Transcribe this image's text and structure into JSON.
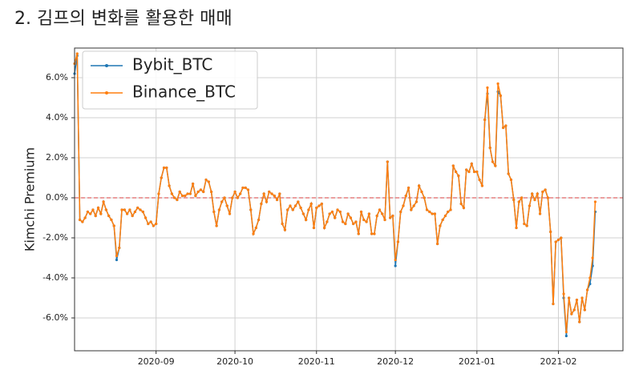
{
  "heading": "2. 김프의 변화를 활용한 매매",
  "chart_data": {
    "type": "line",
    "ylabel": "Kimchi Premium",
    "categories": [
      null,
      null,
      null,
      null,
      null,
      null,
      null,
      null,
      null,
      null,
      null,
      null,
      null,
      null,
      null,
      null,
      null,
      null,
      null,
      null,
      null,
      null,
      null,
      null,
      null,
      null,
      null,
      null,
      null,
      null,
      null,
      "2020-09",
      null,
      null,
      null,
      null,
      null,
      null,
      null,
      null,
      null,
      null,
      null,
      null,
      null,
      null,
      null,
      null,
      null,
      null,
      null,
      null,
      null,
      null,
      null,
      null,
      null,
      null,
      null,
      null,
      null,
      "2020-10",
      null,
      null,
      null,
      null,
      null,
      null,
      null,
      null,
      null,
      null,
      null,
      null,
      null,
      null,
      null,
      null,
      null,
      null,
      null,
      null,
      null,
      null,
      null,
      null,
      null,
      null,
      null,
      null,
      null,
      null,
      "2020-11",
      null,
      null,
      null,
      null,
      null,
      null,
      null,
      null,
      null,
      null,
      null,
      null,
      null,
      null,
      null,
      null,
      null,
      null,
      null,
      null,
      null,
      null,
      null,
      null,
      null,
      null,
      null,
      null,
      null,
      "2020-12",
      null,
      null,
      null,
      null,
      null,
      null,
      null,
      null,
      null,
      null,
      null,
      null,
      null,
      null,
      null,
      null,
      null,
      null,
      null,
      null,
      null,
      null,
      null,
      null,
      null,
      null,
      null,
      null,
      null,
      null,
      "2021-01",
      null,
      null,
      null,
      null,
      null,
      null,
      null,
      null,
      null,
      null,
      null,
      null,
      null,
      null,
      null,
      null,
      null,
      null,
      null,
      null,
      null,
      null,
      null,
      null,
      null,
      null,
      null,
      null,
      null,
      null,
      "2021-02",
      null,
      null,
      null,
      null,
      null,
      null,
      null,
      null,
      null,
      null,
      null,
      null,
      null,
      null
    ],
    "series": [
      {
        "name": "Bybit_BTC",
        "color": "#1f77b4",
        "values": [
          6.2,
          7.1,
          -1.1,
          -1.2,
          -1.0,
          -0.7,
          -0.8,
          -0.6,
          -0.9,
          -0.5,
          -0.8,
          -0.2,
          -0.6,
          -0.9,
          -1.1,
          -1.4,
          -3.1,
          -2.5,
          -0.6,
          -0.6,
          -0.8,
          -0.6,
          -0.9,
          -0.7,
          -0.5,
          -0.6,
          -0.7,
          -1.0,
          -1.3,
          -1.2,
          -1.4,
          -1.3,
          0.2,
          1.0,
          1.5,
          1.5,
          0.6,
          0.2,
          0.0,
          -0.1,
          0.3,
          0.1,
          0.1,
          0.2,
          0.2,
          0.7,
          0.1,
          0.3,
          0.4,
          0.3,
          0.9,
          0.8,
          0.3,
          -0.7,
          -1.4,
          -0.6,
          -0.2,
          0.0,
          -0.4,
          -0.8,
          0.0,
          0.3,
          0.0,
          0.2,
          0.5,
          0.5,
          0.4,
          -0.6,
          -1.8,
          -1.5,
          -1.1,
          -0.3,
          0.2,
          -0.2,
          0.3,
          0.2,
          0.1,
          -0.1,
          0.2,
          -1.3,
          -1.6,
          -0.6,
          -0.4,
          -0.6,
          -0.4,
          -0.2,
          -0.5,
          -0.8,
          -1.1,
          -0.6,
          -0.3,
          -1.5,
          -0.5,
          -0.4,
          -0.3,
          -1.5,
          -1.2,
          -0.8,
          -0.7,
          -1.0,
          -0.6,
          -0.7,
          -1.2,
          -1.3,
          -0.8,
          -1.0,
          -1.3,
          -1.2,
          -1.8,
          -0.7,
          -1.1,
          -1.2,
          -0.8,
          -1.8,
          -1.8,
          -0.9,
          -0.6,
          -0.8,
          -1.1,
          1.8,
          -1.0,
          -0.9,
          -3.4,
          -2.2,
          -0.7,
          -0.4,
          0.1,
          0.5,
          -0.6,
          -0.4,
          -0.2,
          0.6,
          0.3,
          0.0,
          -0.6,
          -0.7,
          -0.8,
          -0.8,
          -2.3,
          -1.4,
          -1.1,
          -0.9,
          -0.7,
          -0.6,
          1.6,
          1.3,
          1.1,
          -0.3,
          -0.5,
          1.4,
          1.3,
          1.7,
          1.3,
          1.3,
          0.9,
          0.6,
          3.9,
          5.2,
          2.5,
          1.8,
          1.6,
          5.3,
          5.1,
          3.5,
          3.6,
          1.2,
          0.9,
          -0.1,
          -1.5,
          -0.2,
          0.0,
          -1.3,
          -1.4,
          -0.4,
          0.2,
          -0.1,
          0.2,
          -0.8,
          0.3,
          0.4,
          0.0,
          -1.7,
          -5.3,
          -2.2,
          -2.1,
          -2.0,
          -5.0,
          -6.9,
          -5.0,
          -5.8,
          -5.6,
          -5.1,
          -6.2,
          -5.0,
          -5.6,
          -4.6,
          -4.3,
          -3.4,
          -0.7
        ]
      },
      {
        "name": "Binance_BTC",
        "color": "#ff7f0e",
        "values": [
          6.7,
          7.2,
          -1.1,
          -1.2,
          -1.0,
          -0.7,
          -0.8,
          -0.6,
          -0.9,
          -0.5,
          -0.8,
          -0.2,
          -0.6,
          -0.9,
          -1.1,
          -1.4,
          -2.9,
          -2.5,
          -0.6,
          -0.6,
          -0.8,
          -0.6,
          -0.9,
          -0.7,
          -0.5,
          -0.6,
          -0.7,
          -1.0,
          -1.3,
          -1.2,
          -1.4,
          -1.3,
          0.2,
          1.0,
          1.5,
          1.5,
          0.6,
          0.2,
          0.0,
          -0.1,
          0.3,
          0.1,
          0.1,
          0.2,
          0.2,
          0.7,
          0.1,
          0.3,
          0.4,
          0.3,
          0.9,
          0.8,
          0.3,
          -0.7,
          -1.4,
          -0.6,
          -0.2,
          0.0,
          -0.4,
          -0.8,
          0.0,
          0.3,
          0.0,
          0.2,
          0.5,
          0.5,
          0.4,
          -0.6,
          -1.8,
          -1.5,
          -1.1,
          -0.3,
          0.2,
          -0.2,
          0.3,
          0.2,
          0.1,
          -0.1,
          0.2,
          -1.3,
          -1.6,
          -0.6,
          -0.4,
          -0.6,
          -0.4,
          -0.2,
          -0.5,
          -0.8,
          -1.1,
          -0.6,
          -0.3,
          -1.5,
          -0.5,
          -0.4,
          -0.3,
          -1.5,
          -1.2,
          -0.8,
          -0.7,
          -1.0,
          -0.6,
          -0.7,
          -1.2,
          -1.3,
          -0.8,
          -1.0,
          -1.3,
          -1.2,
          -1.8,
          -0.7,
          -1.1,
          -1.2,
          -0.8,
          -1.8,
          -1.8,
          -0.9,
          -0.6,
          -0.8,
          -1.1,
          1.8,
          -1.0,
          -0.9,
          -3.1,
          -2.2,
          -0.7,
          -0.4,
          0.1,
          0.5,
          -0.6,
          -0.4,
          -0.2,
          0.6,
          0.3,
          0.0,
          -0.6,
          -0.7,
          -0.8,
          -0.8,
          -2.3,
          -1.4,
          -1.1,
          -0.9,
          -0.7,
          -0.6,
          1.6,
          1.3,
          1.1,
          -0.3,
          -0.5,
          1.4,
          1.3,
          1.7,
          1.3,
          1.3,
          0.9,
          0.6,
          3.9,
          5.5,
          2.5,
          1.8,
          1.6,
          5.7,
          5.1,
          3.5,
          3.6,
          1.2,
          0.9,
          -0.1,
          -1.5,
          -0.2,
          0.0,
          -1.3,
          -1.4,
          -0.4,
          0.2,
          -0.1,
          0.2,
          -0.8,
          0.3,
          0.4,
          0.0,
          -1.7,
          -5.3,
          -2.2,
          -2.1,
          -2.0,
          -4.8,
          -6.7,
          -5.0,
          -5.8,
          -5.6,
          -5.1,
          -6.2,
          -5.0,
          -5.6,
          -4.6,
          -4.0,
          -3.0,
          -0.2
        ]
      }
    ],
    "ylim": [
      -7.64,
      7.48
    ],
    "yticks": [
      {
        "value": -6,
        "label": "-6.0%"
      },
      {
        "value": -4,
        "label": "-4.0%"
      },
      {
        "value": -2,
        "label": "-2.0%"
      },
      {
        "value": 0,
        "label": "0.0%"
      },
      {
        "value": 2,
        "label": "2.0%"
      },
      {
        "value": 4,
        "label": "4.0%"
      },
      {
        "value": 6,
        "label": "6.0%"
      }
    ],
    "reference_line": {
      "value": 0,
      "color": "#e06666"
    },
    "grid": true,
    "legend": "upper-left"
  }
}
